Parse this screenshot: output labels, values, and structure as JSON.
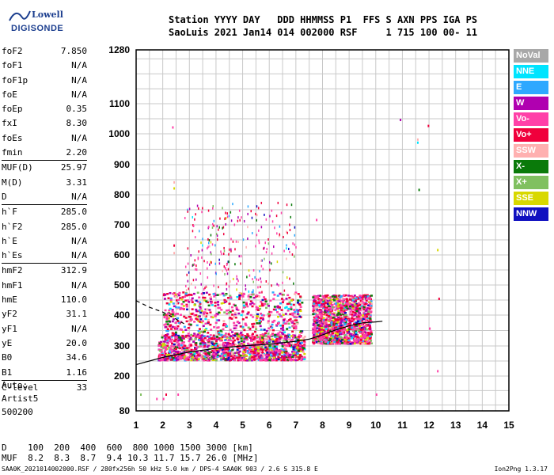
{
  "logo": {
    "top": "Lowell",
    "main": "DIGISONDE"
  },
  "header": {
    "line1": "Station YYYY DAY   DDD HHMMSS P1  FFS S AXN PPS IGA PS",
    "line2": "SaoLuis 2021 Jan14 014 002000 RSF     1 715 100 00- 11"
  },
  "params": [
    {
      "name": "foF2",
      "value": "7.850"
    },
    {
      "name": "foF1",
      "value": "N/A"
    },
    {
      "name": "foF1p",
      "value": "N/A"
    },
    {
      "name": "foE",
      "value": "N/A"
    },
    {
      "name": "foEp",
      "value": "0.35"
    },
    {
      "name": "fxI",
      "value": "8.30"
    },
    {
      "name": "foEs",
      "value": "N/A"
    },
    {
      "name": "fmin",
      "value": "2.20",
      "sep_after": true
    },
    {
      "name": "MUF(D)",
      "value": "25.97"
    },
    {
      "name": "M(D)",
      "value": "3.31"
    },
    {
      "name": "D",
      "value": "N/A",
      "sep_after": true
    },
    {
      "name": "h`F",
      "value": "285.0"
    },
    {
      "name": "h`F2",
      "value": "285.0"
    },
    {
      "name": "h`E",
      "value": "N/A"
    },
    {
      "name": "h`Es",
      "value": "N/A",
      "sep_after": true
    },
    {
      "name": "hmF2",
      "value": "312.9"
    },
    {
      "name": "hmF1",
      "value": "N/A"
    },
    {
      "name": "hmE",
      "value": "110.0"
    },
    {
      "name": "yF2",
      "value": "31.1"
    },
    {
      "name": "yF1",
      "value": "N/A"
    },
    {
      "name": "yE",
      "value": "20.0"
    },
    {
      "name": "B0",
      "value": "34.6"
    },
    {
      "name": "B1",
      "value": "1.16",
      "sep_after": true
    },
    {
      "name": "C-level",
      "value": "33",
      "sep_after": true
    }
  ],
  "auto": {
    "line1": "Auto:",
    "line2": "Artist5",
    "line3": "500200"
  },
  "legend": [
    {
      "label": "NoVal",
      "color": "#a8a8a8"
    },
    {
      "label": "NNE",
      "color": "#00e4ff"
    },
    {
      "label": "E",
      "color": "#2ea8ff"
    },
    {
      "label": "W",
      "color": "#b000b0"
    },
    {
      "label": "Vo-",
      "color": "#ff40a8"
    },
    {
      "label": "Vo+",
      "color": "#f0003c"
    },
    {
      "label": "SSW",
      "color": "#ffb0b0"
    },
    {
      "label": "X-",
      "color": "#0a7a0a"
    },
    {
      "label": "X+",
      "color": "#80c060"
    },
    {
      "label": "SSE",
      "color": "#d8d800"
    },
    {
      "label": "NNW",
      "color": "#1010c0"
    }
  ],
  "bottom": {
    "d_line": "D    100  200  400  600  800 1000 1500 3000 [km]",
    "muf_line": "MUF  8.2  8.3  8.7  9.4 10.3 11.7 15.7 26.0 [MHz]"
  },
  "footer": {
    "left": "SAA0K_2021014002000.RSF / 280fx256h 50 kHz 5.0 km / DPS-4 SAA0K 903 / 2.6 S 315.8 E",
    "right": "Ion2Png 1.3.17"
  },
  "chart_data": {
    "type": "scatter",
    "title": "",
    "xlabel": "",
    "ylabel": "",
    "xlim": [
      1,
      15
    ],
    "ylim": [
      80,
      1280
    ],
    "y_scale": "reciprocal-like (ionogram virtual height)",
    "x_ticks": [
      1,
      2,
      3,
      4,
      5,
      6,
      7,
      8,
      9,
      10,
      11,
      12,
      13,
      14,
      15
    ],
    "y_ticks": [
      80,
      200,
      300,
      400,
      500,
      600,
      700,
      800,
      900,
      1000,
      1100,
      1280
    ],
    "grid": true,
    "trace_curve": {
      "name": "",
      "points": [
        [
          1.0,
          238
        ],
        [
          1.5,
          250
        ],
        [
          2.0,
          262
        ],
        [
          3.0,
          280
        ],
        [
          4.0,
          292
        ],
        [
          5.0,
          300
        ],
        [
          6.0,
          306
        ],
        [
          7.0,
          315
        ],
        [
          7.5,
          322
        ],
        [
          8.0,
          336
        ],
        [
          8.5,
          352
        ],
        [
          9.0,
          365
        ],
        [
          9.5,
          375
        ],
        [
          10.0,
          378
        ],
        [
          10.25,
          380
        ]
      ]
    },
    "dashed_curve": {
      "name": "",
      "points": [
        [
          1.0,
          448
        ],
        [
          1.5,
          426
        ],
        [
          2.0,
          410
        ],
        [
          2.4,
          392
        ],
        [
          2.8,
          372
        ]
      ]
    },
    "echo_regions": [
      {
        "x_range": [
          1.8,
          7.3
        ],
        "h_range": [
          255,
          340
        ],
        "density": "high"
      },
      {
        "x_range": [
          2.0,
          7.2
        ],
        "h_range": [
          330,
          480
        ],
        "density": "medium"
      },
      {
        "x_range": [
          2.8,
          7.0
        ],
        "h_range": [
          480,
          780
        ],
        "density": "sparse"
      },
      {
        "x_range": [
          7.6,
          9.8
        ],
        "h_range": [
          310,
          470
        ],
        "density": "high"
      }
    ],
    "isolated_points": [
      [
        2.35,
        1025
      ],
      [
        2.4,
        845
      ],
      [
        2.4,
        825
      ],
      [
        2.4,
        635
      ],
      [
        2.4,
        610
      ],
      [
        7.75,
        720
      ],
      [
        10.9,
        1050
      ],
      [
        11.55,
        985
      ],
      [
        11.55,
        975
      ],
      [
        11.95,
        1030
      ],
      [
        11.6,
        820
      ],
      [
        12.3,
        620
      ],
      [
        12.35,
        458
      ],
      [
        12.3,
        220
      ],
      [
        12.0,
        360
      ],
      [
        1.15,
        140
      ],
      [
        2.1,
        140
      ],
      [
        2.55,
        140
      ],
      [
        10.0,
        140
      ],
      [
        2.0,
        125
      ],
      [
        1.75,
        125
      ]
    ]
  }
}
